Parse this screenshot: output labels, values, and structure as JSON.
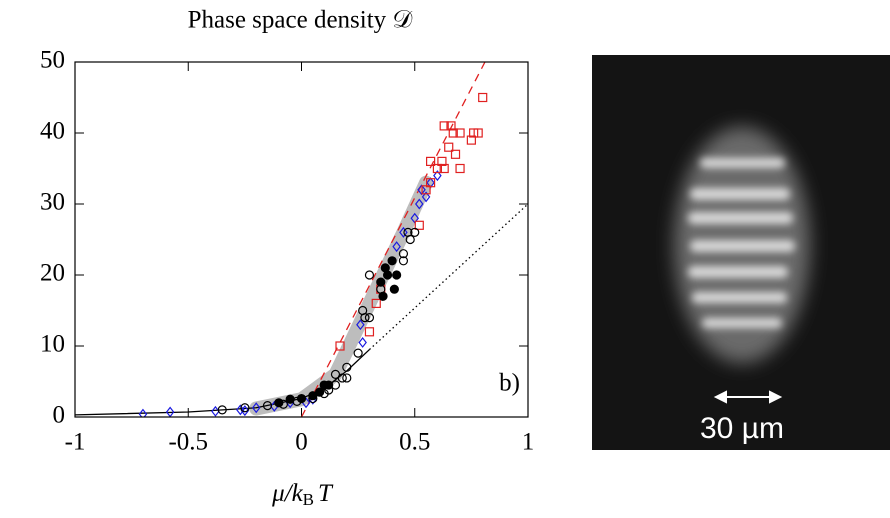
{
  "chart_data": {
    "type": "scatter",
    "title": "Phase space density 𝒟",
    "xlabel": "μ/k",
    "xlabel_sub": "B",
    "xlabel_tail": "T",
    "panel_label": "b)",
    "xlim": [
      -1,
      1
    ],
    "xticks": [
      -1,
      -0.5,
      0,
      0.5,
      1
    ],
    "ylim": [
      0,
      50
    ],
    "yticks": [
      0,
      10,
      20,
      30,
      40,
      50
    ],
    "series": [
      {
        "marker": "band",
        "color": "#bdbdbd",
        "x": [
          -0.2,
          0,
          0.15,
          0.3,
          0.45,
          0.55
        ],
        "values": [
          1.2,
          2.5,
          6,
          16,
          26,
          33
        ]
      },
      {
        "marker": "line",
        "color": "#000000",
        "x": [
          -1,
          -0.5,
          -0.2,
          0,
          0.1,
          0.2,
          0.3
        ],
        "values": [
          0.3,
          0.7,
          1.3,
          2.6,
          4,
          6.5,
          9.5
        ]
      },
      {
        "marker": "dotted",
        "color": "#000000",
        "x": [
          0.3,
          1
        ],
        "values": [
          9.5,
          30
        ]
      },
      {
        "marker": "dashed",
        "color": "#e02020",
        "x": [
          0,
          0.81
        ],
        "values": [
          0,
          50
        ]
      },
      {
        "marker": "diamond",
        "color": "#1a1ae0",
        "x": [
          -0.7,
          -0.58,
          -0.38,
          -0.27,
          -0.25,
          -0.2,
          -0.12,
          -0.05,
          0.02,
          0.05,
          0.27,
          0.26,
          0.42,
          0.45,
          0.5,
          0.52,
          0.55,
          0.53,
          0.57,
          0.6
        ],
        "values": [
          0.4,
          0.7,
          0.8,
          1.0,
          0.9,
          1.3,
          1.5,
          2.0,
          2.0,
          2.5,
          10.5,
          13,
          24,
          26,
          28,
          30,
          31,
          32,
          33,
          34
        ]
      },
      {
        "marker": "square",
        "color": "#e02020",
        "x": [
          0.33,
          0.35,
          0.52,
          0.55,
          0.57,
          0.6,
          0.57,
          0.62,
          0.65,
          0.63,
          0.66,
          0.67,
          0.68,
          0.7,
          0.75,
          0.76,
          0.78,
          0.8,
          0.7,
          0.63,
          0.17,
          0.3
        ],
        "values": [
          16,
          18,
          27,
          32,
          33,
          35,
          36,
          36,
          38,
          41,
          41,
          40,
          37,
          40,
          39,
          40,
          40,
          45,
          35,
          35,
          10,
          12
        ]
      },
      {
        "marker": "circle",
        "color": "#000000",
        "x": [
          -0.35,
          -0.25,
          -0.15,
          -0.08,
          -0.02,
          0.05,
          0.1,
          0.12,
          0.15,
          0.18,
          0.2,
          0.25,
          0.28,
          0.3,
          0.27,
          0.3,
          0.35,
          0.45,
          0.47,
          0.48,
          0.5,
          0.45,
          0.15,
          0.2
        ],
        "values": [
          1.0,
          1.3,
          1.6,
          1.8,
          2.2,
          2.6,
          3.3,
          3.8,
          4.5,
          5.5,
          7,
          9,
          14,
          14,
          15,
          20,
          18,
          22,
          26,
          25,
          26,
          23,
          6,
          5.5
        ]
      },
      {
        "marker": "filled-circle",
        "color": "#000000",
        "x": [
          -0.1,
          -0.05,
          0.0,
          0.05,
          0.08,
          0.1,
          0.12,
          0.35,
          0.37,
          0.38,
          0.4,
          0.42,
          0.36,
          0.41
        ],
        "values": [
          2,
          2.5,
          2.6,
          3,
          3.5,
          4.5,
          4.5,
          19,
          21,
          20,
          22,
          20,
          17,
          18
        ]
      }
    ]
  },
  "image": {
    "scale_label": "30 µm"
  }
}
